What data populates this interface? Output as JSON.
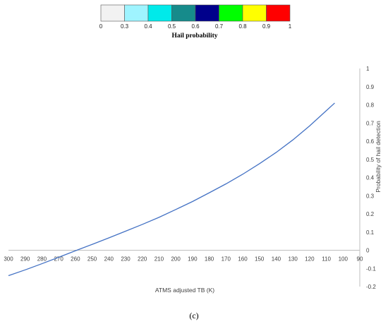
{
  "colorbar": {
    "title": "Hail probability",
    "ticks": [
      "0",
      "0.3",
      "0.4",
      "0.5",
      "0.6",
      "0.7",
      "0.8",
      "0.9",
      "1"
    ],
    "colors": [
      "#f2f2f2",
      "#9ff4ff",
      "#00eaea",
      "#168b8b",
      "#00008b",
      "#00ff00",
      "#ffff00",
      "#ff0000"
    ]
  },
  "panel_label": "(c)",
  "chart_data": {
    "type": "line",
    "title": "",
    "xlabel": "ATMS adjusted TB (K)",
    "ylabel": "Probability of hail detection",
    "x_ticks": [
      "300",
      "290",
      "280",
      "270",
      "260",
      "250",
      "240",
      "230",
      "220",
      "210",
      "200",
      "190",
      "180",
      "170",
      "160",
      "150",
      "140",
      "130",
      "120",
      "110",
      "100",
      "90"
    ],
    "y_ticks": [
      "-0.2",
      "-0.1",
      "0",
      "0.1",
      "0.2",
      "0.3",
      "0.4",
      "0.5",
      "0.6",
      "0.7",
      "0.8",
      "0.9",
      "1"
    ],
    "xlim": [
      300,
      90
    ],
    "ylim": [
      -0.2,
      1
    ],
    "x_reversed": true,
    "series_color": "#4472c4",
    "series": [
      {
        "name": "",
        "x": [
          300,
          290,
          280,
          270,
          260,
          250,
          240,
          230,
          220,
          210,
          200,
          190,
          180,
          170,
          160,
          150,
          140,
          130,
          120,
          110,
          105
        ],
        "y": [
          -0.14,
          -0.108,
          -0.074,
          -0.039,
          -0.003,
          0.032,
          0.068,
          0.105,
          0.142,
          0.181,
          0.224,
          0.268,
          0.316,
          0.365,
          0.418,
          0.476,
          0.538,
          0.607,
          0.684,
          0.768,
          0.81
        ]
      }
    ]
  }
}
